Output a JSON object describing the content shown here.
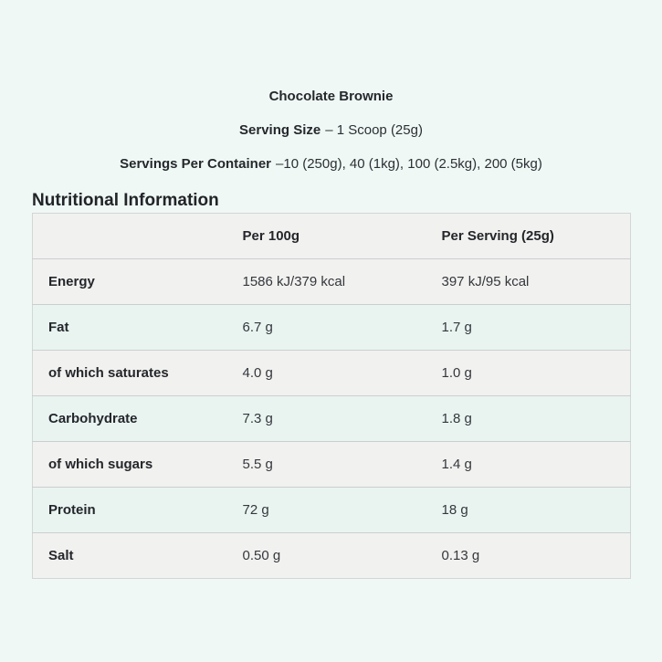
{
  "product": {
    "title": "Chocolate Brownie",
    "serving_size_label": "Serving Size",
    "serving_size_value": "– 1 Scoop (25g)",
    "servings_label": "Servings Per Container",
    "servings_value": "–10 (250g), 40 (1kg), 100 (2.5kg), 200 (5kg)"
  },
  "section": {
    "title": "Nutritional Information"
  },
  "table": {
    "columns": {
      "col0": "",
      "col1": "Per 100g",
      "col2": "Per Serving (25g)"
    },
    "rows": [
      {
        "label": "Energy",
        "per_100g": "1586 kJ/379 kcal",
        "per_serving": "397 kJ/95 kcal"
      },
      {
        "label": "Fat",
        "per_100g": "6.7 g",
        "per_serving": "1.7 g"
      },
      {
        "label": "of which saturates",
        "per_100g": "4.0 g",
        "per_serving": "1.0 g"
      },
      {
        "label": "Carbohydrate",
        "per_100g": "7.3 g",
        "per_serving": "1.8 g"
      },
      {
        "label": "of which sugars",
        "per_100g": "5.5 g",
        "per_serving": "1.4 g"
      },
      {
        "label": "Protein",
        "per_100g": "72 g",
        "per_serving": "18 g"
      },
      {
        "label": "Salt",
        "per_100g": "0.50 g",
        "per_serving": "0.13 g"
      }
    ]
  },
  "colors": {
    "page_background": "#eff8f5",
    "row_gray": "#f1f1ef",
    "row_mint": "#e9f4f1",
    "row_border": "#cbced0",
    "text": "#25282c"
  }
}
